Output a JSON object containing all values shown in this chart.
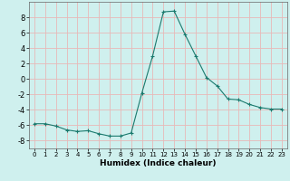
{
  "x": [
    0,
    1,
    2,
    3,
    4,
    5,
    6,
    7,
    8,
    9,
    10,
    11,
    12,
    13,
    14,
    15,
    16,
    17,
    18,
    19,
    20,
    21,
    22,
    23
  ],
  "y": [
    -5.8,
    -5.8,
    -6.1,
    -6.6,
    -6.8,
    -6.7,
    -7.1,
    -7.4,
    -7.4,
    -7.0,
    -1.8,
    3.0,
    8.7,
    8.8,
    5.8,
    3.0,
    0.2,
    -0.9,
    -2.6,
    -2.7,
    -3.3,
    -3.7,
    -3.9,
    -3.9
  ],
  "title": "",
  "xlabel": "Humidex (Indice chaleur)",
  "ylabel": "",
  "xlim": [
    -0.5,
    23.5
  ],
  "ylim": [
    -9,
    10
  ],
  "yticks": [
    -8,
    -6,
    -4,
    -2,
    0,
    2,
    4,
    6,
    8
  ],
  "xticks": [
    0,
    1,
    2,
    3,
    4,
    5,
    6,
    7,
    8,
    9,
    10,
    11,
    12,
    13,
    14,
    15,
    16,
    17,
    18,
    19,
    20,
    21,
    22,
    23
  ],
  "line_color": "#1a7a6e",
  "marker": "+",
  "bg_color": "#cff0ee",
  "grid_color": "#e8b8b8",
  "fig_bg": "#cff0ee",
  "xlabel_fontsize": 6.5,
  "xlabel_fontweight": "bold",
  "tick_fontsize_x": 5.0,
  "tick_fontsize_y": 6.0
}
